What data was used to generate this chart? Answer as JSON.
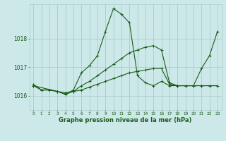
{
  "background_color": "#cce8e8",
  "grid_color": "#aacccc",
  "line_color": "#1a5c1a",
  "title": "Graphe pression niveau de la mer (hPa)",
  "xlim": [
    -0.5,
    23.5
  ],
  "ylim": [
    1015.5,
    1019.2
  ],
  "yticks": [
    1016,
    1017,
    1018
  ],
  "xticks": [
    0,
    1,
    2,
    3,
    4,
    5,
    6,
    7,
    8,
    9,
    10,
    11,
    12,
    13,
    14,
    15,
    16,
    17,
    18,
    19,
    20,
    21,
    22,
    23
  ],
  "series": [
    {
      "x": [
        0,
        1,
        2,
        3,
        4,
        5,
        6,
        7,
        8,
        9,
        10,
        11,
        12,
        13,
        14,
        15,
        16,
        17,
        18,
        19,
        20,
        21,
        22,
        23
      ],
      "y": [
        1016.4,
        1016.2,
        1016.2,
        1016.15,
        1016.05,
        1016.2,
        1016.8,
        1017.05,
        1017.4,
        1018.25,
        1019.05,
        1018.85,
        1018.55,
        1016.7,
        1016.45,
        1016.35,
        1016.5,
        1016.35,
        1016.35,
        1016.35,
        1016.35,
        1016.35,
        1016.35,
        1016.35
      ]
    },
    {
      "x": [
        0,
        1,
        2,
        3,
        4,
        5,
        6,
        7,
        8,
        9,
        10,
        11,
        12,
        13,
        14,
        15,
        16,
        17,
        18,
        19,
        20,
        21,
        22,
        23
      ],
      "y": [
        1016.35,
        1016.2,
        1016.2,
        1016.15,
        1016.1,
        1016.15,
        1016.2,
        1016.3,
        1016.4,
        1016.5,
        1016.6,
        1016.7,
        1016.8,
        1016.85,
        1016.9,
        1016.95,
        1016.95,
        1016.4,
        1016.35,
        1016.35,
        1016.35,
        1016.35,
        1016.35,
        1016.35
      ]
    },
    {
      "x": [
        0,
        3,
        4,
        5,
        6,
        7,
        8,
        9,
        10,
        11,
        12,
        13,
        14,
        15,
        16,
        17,
        18,
        19,
        20,
        21,
        22,
        23
      ],
      "y": [
        1016.35,
        1016.15,
        1016.05,
        1016.15,
        1016.35,
        1016.5,
        1016.7,
        1016.9,
        1017.1,
        1017.3,
        1017.5,
        1017.6,
        1017.7,
        1017.75,
        1017.6,
        1016.45,
        1016.35,
        1016.35,
        1016.35,
        1016.95,
        1017.4,
        1018.25
      ]
    }
  ]
}
